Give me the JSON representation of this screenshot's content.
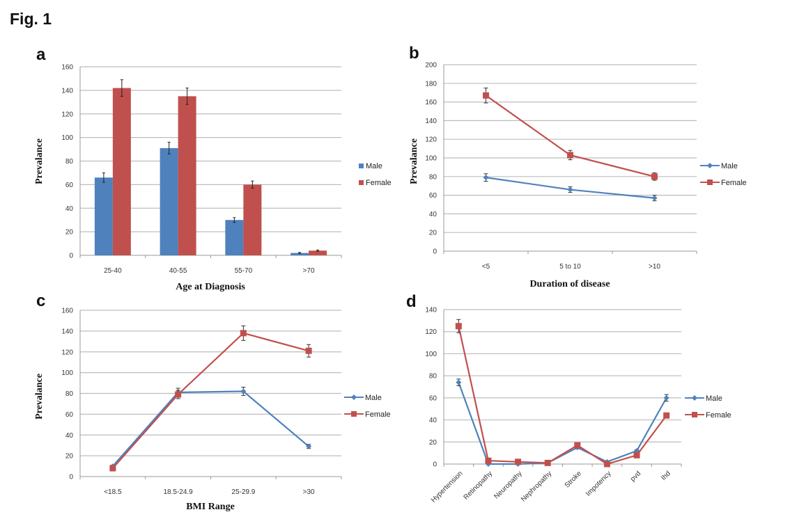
{
  "figure_title": "Fig. 1",
  "colors": {
    "male": "#4f81bd",
    "female": "#c0504d",
    "grid": "#bdbdbd"
  },
  "chart_data": [
    {
      "panel": "a",
      "type": "bar",
      "xlabel": "Age at Diagnosis",
      "ylabel": "Prevalance",
      "categories": [
        "25-40",
        "40-55",
        "55-70",
        ">70"
      ],
      "ylim": [
        0,
        160
      ],
      "yticks": [
        0,
        20,
        40,
        60,
        80,
        100,
        120,
        140,
        160
      ],
      "grid": true,
      "legend": "right",
      "series": [
        {
          "name": "Male",
          "values": [
            66,
            91,
            30,
            2
          ],
          "errors": [
            4,
            5,
            2,
            0.5
          ]
        },
        {
          "name": "Female",
          "values": [
            142,
            135,
            60,
            4
          ],
          "errors": [
            7,
            7,
            3,
            0.5
          ]
        }
      ]
    },
    {
      "panel": "b",
      "type": "line",
      "xlabel": "Duration of disease",
      "ylabel": "Prevalance",
      "categories": [
        "<5",
        "5 to 10",
        ">10"
      ],
      "ylim": [
        0,
        200
      ],
      "yticks": [
        0,
        20,
        40,
        60,
        80,
        100,
        120,
        140,
        160,
        180,
        200
      ],
      "grid": true,
      "legend": "right",
      "series": [
        {
          "name": "Male",
          "values": [
            79,
            66,
            57
          ],
          "errors": [
            4,
            3,
            3
          ]
        },
        {
          "name": "Female",
          "values": [
            167,
            103,
            80
          ],
          "errors": [
            8,
            5,
            4
          ]
        }
      ]
    },
    {
      "panel": "c",
      "type": "line",
      "xlabel": "BMI Range",
      "ylabel": "Prevalance",
      "categories": [
        "<18.5",
        "18.5-24.9",
        "25-29.9",
        ">30"
      ],
      "ylim": [
        0,
        160
      ],
      "yticks": [
        0,
        20,
        40,
        60,
        80,
        100,
        120,
        140,
        160
      ],
      "grid": true,
      "legend": "right",
      "series": [
        {
          "name": "Male",
          "values": [
            10,
            81,
            82,
            29
          ],
          "errors": [
            1,
            4,
            4,
            2
          ]
        },
        {
          "name": "Female",
          "values": [
            8,
            79,
            138,
            121
          ],
          "errors": [
            1,
            4,
            7,
            6
          ]
        }
      ]
    },
    {
      "panel": "d",
      "type": "line",
      "xlabel": "",
      "ylabel": "",
      "categories": [
        "Hypertension",
        "Retinopathy",
        "Neuropathy",
        "Nephropathy",
        "Stroke",
        "Impotency",
        "pvd",
        "Ihd"
      ],
      "ylim": [
        0,
        140
      ],
      "yticks": [
        0,
        20,
        40,
        60,
        80,
        100,
        120,
        140
      ],
      "grid": true,
      "legend": "right",
      "series": [
        {
          "name": "Male",
          "values": [
            74,
            0,
            0,
            1,
            15,
            2,
            12,
            60
          ],
          "errors": [
            3,
            0,
            0,
            0,
            1,
            0,
            1,
            3
          ]
        },
        {
          "name": "Female",
          "values": [
            125,
            3,
            2,
            1,
            17,
            0,
            8,
            44
          ],
          "errors": [
            6,
            0,
            0,
            0,
            1,
            0,
            1,
            2
          ]
        }
      ]
    }
  ]
}
